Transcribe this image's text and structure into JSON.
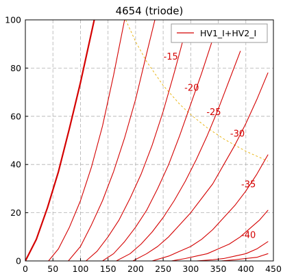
{
  "chart_data": {
    "type": "line",
    "title": "4654  (triode)",
    "xlabel": "",
    "ylabel": "",
    "xlim": [
      0,
      450
    ],
    "ylim": [
      0,
      100
    ],
    "x_ticks": [
      0,
      50,
      100,
      150,
      200,
      250,
      300,
      350,
      400,
      450
    ],
    "y_ticks": [
      0,
      20,
      40,
      60,
      80,
      100
    ],
    "grid": true,
    "legend": {
      "position": "top-right",
      "entries": [
        "HV1_I+HV2_I"
      ]
    },
    "colors": {
      "curves": "#d40000",
      "dissipation": "#e8b000",
      "grid": "#b0b0b0"
    },
    "series": [
      {
        "grid_bias": 0,
        "x": [
          0,
          20,
          40,
          60,
          80,
          100,
          125
        ],
        "y": [
          0,
          9,
          22,
          37,
          55,
          74,
          100
        ]
      },
      {
        "grid_bias": -5,
        "x": [
          42,
          60,
          80,
          100,
          120,
          140,
          160,
          180
        ],
        "y": [
          0,
          5,
          14,
          25,
          39,
          56,
          77,
          100
        ]
      },
      {
        "grid_bias": -10,
        "x": [
          78,
          100,
          120,
          140,
          160,
          180,
          200,
          220,
          235
        ],
        "y": [
          0,
          6,
          15,
          25,
          37,
          51,
          67,
          86,
          100
        ]
      },
      {
        "grid_bias": -15,
        "x": [
          110,
          130,
          150,
          170,
          190,
          210,
          230,
          250,
          270,
          290
        ],
        "y": [
          0,
          4,
          10,
          17,
          26,
          36,
          48,
          62,
          78,
          95
        ]
      },
      {
        "grid_bias": -20,
        "x": [
          140,
          160,
          180,
          200,
          220,
          240,
          260,
          280,
          300,
          320,
          340
        ],
        "y": [
          0,
          3,
          8,
          14,
          21,
          30,
          40,
          52,
          65,
          78,
          92
        ]
      },
      {
        "grid_bias": -25,
        "x": [
          165,
          190,
          210,
          230,
          250,
          270,
          290,
          310,
          330,
          350,
          370,
          390
        ],
        "y": [
          0,
          3,
          7,
          12,
          18,
          25,
          33,
          42,
          52,
          63,
          75,
          87
        ]
      },
      {
        "grid_bias": -30,
        "x": [
          195,
          220,
          240,
          260,
          280,
          300,
          320,
          340,
          360,
          380,
          400,
          420,
          440
        ],
        "y": [
          0,
          3,
          6,
          10,
          15,
          20,
          26,
          32,
          40,
          48,
          57,
          67,
          78
        ]
      },
      {
        "grid_bias": -35,
        "x": [
          230,
          260,
          280,
          300,
          320,
          340,
          360,
          380,
          400,
          420,
          440
        ],
        "y": [
          0,
          2,
          4,
          6,
          9,
          13,
          18,
          23,
          29,
          36,
          44
        ]
      },
      {
        "grid_bias": -40,
        "x": [
          265,
          290,
          310,
          330,
          350,
          370,
          390,
          410,
          425,
          440
        ],
        "y": [
          0,
          1,
          2,
          3,
          5,
          7,
          10,
          14,
          17,
          21
        ]
      },
      {
        "grid_bias": -45,
        "x": [
          310,
          340,
          360,
          380,
          400,
          420,
          440
        ],
        "y": [
          0,
          0.5,
          1,
          2,
          3,
          5,
          8
        ]
      },
      {
        "grid_bias": -50,
        "x": [
          355,
          380,
          400,
          420,
          440
        ],
        "y": [
          0,
          0.5,
          1,
          1.5,
          3
        ]
      }
    ],
    "dissipation_curve": {
      "x": [
        182,
        200,
        220,
        250,
        280,
        300,
        330,
        360,
        400,
        440
      ],
      "y": [
        100,
        91,
        82.7,
        72.8,
        65,
        60.7,
        55.2,
        50.6,
        45.5,
        41.4
      ]
    },
    "annotations": [
      {
        "text": "-15",
        "x": 277,
        "y": 85
      },
      {
        "text": "-20",
        "x": 315,
        "y": 72
      },
      {
        "text": "-25",
        "x": 355,
        "y": 62
      },
      {
        "text": "-30",
        "x": 398,
        "y": 53
      },
      {
        "text": "-35",
        "x": 418,
        "y": 32
      },
      {
        "text": "-40",
        "x": 418,
        "y": 11
      }
    ]
  }
}
